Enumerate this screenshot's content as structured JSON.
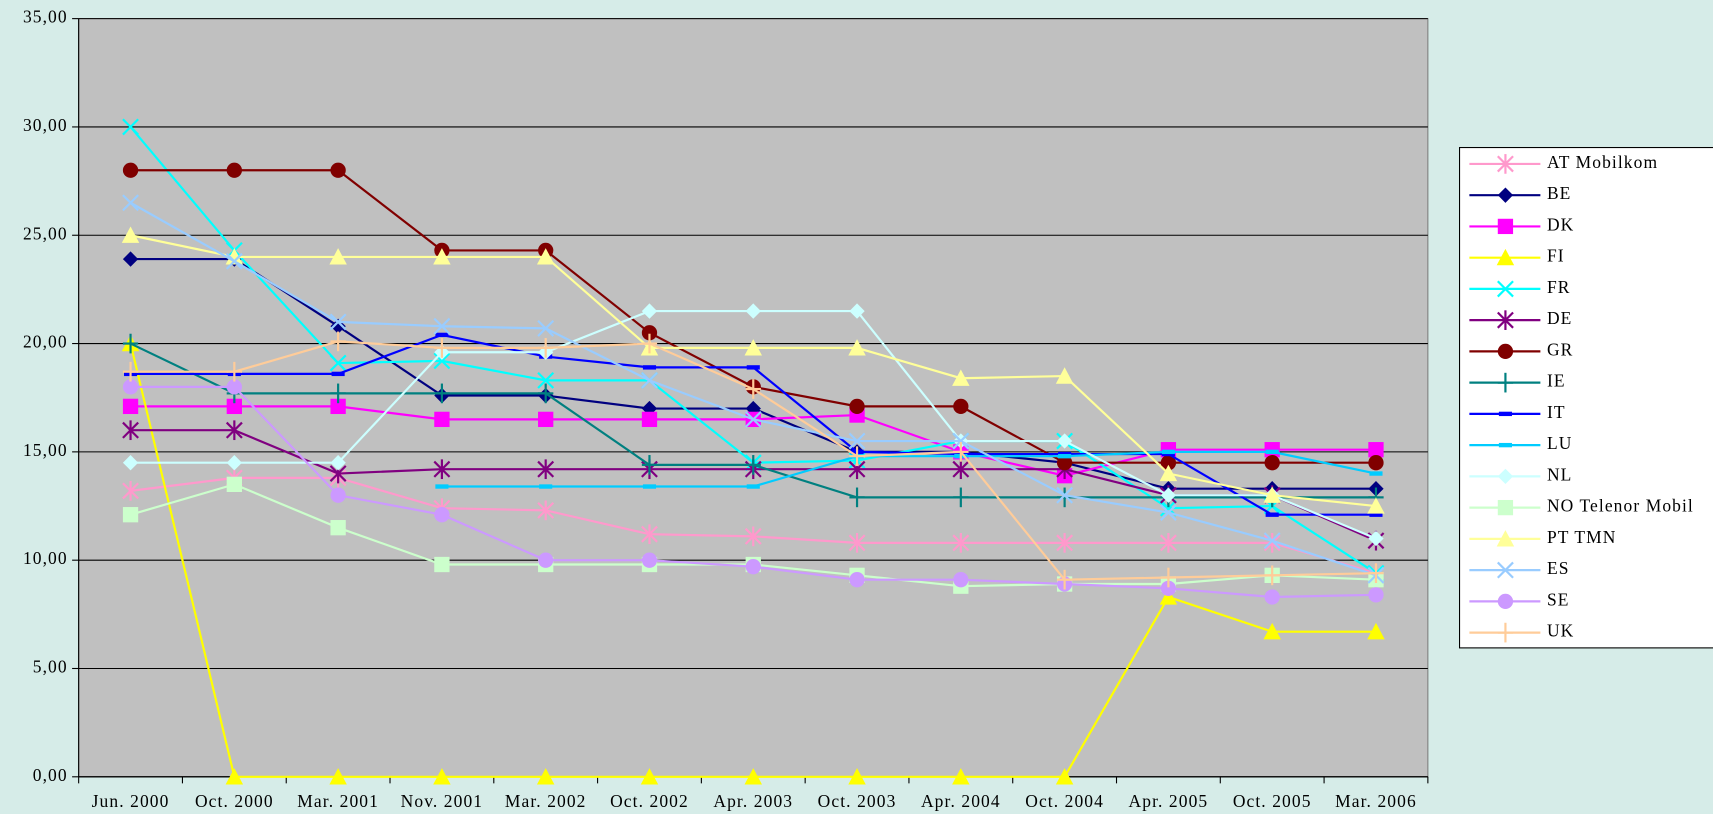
{
  "chart_data": {
    "type": "line",
    "categories": [
      "Jun. 2000",
      "Oct. 2000",
      "Mar. 2001",
      "Nov. 2001",
      "Mar. 2002",
      "Oct. 2002",
      "Apr. 2003",
      "Oct. 2003",
      "Apr. 2004",
      "Oct. 2004",
      "Apr. 2005",
      "Oct. 2005",
      "Mar. 2006"
    ],
    "ylim": [
      0,
      35
    ],
    "yticks": [
      {
        "value": 0,
        "label": "0,00"
      },
      {
        "value": 5,
        "label": "5,00"
      },
      {
        "value": 10,
        "label": "10,00"
      },
      {
        "value": 15,
        "label": "15,00"
      },
      {
        "value": 20,
        "label": "20,00"
      },
      {
        "value": 25,
        "label": "25,00"
      },
      {
        "value": 30,
        "label": "30,00"
      },
      {
        "value": 35,
        "label": "35,00"
      }
    ],
    "grid": true,
    "legend": "right",
    "series": [
      {
        "name": "AT Mobilkom",
        "color": "#ff99cc",
        "marker": "asterisk",
        "values": [
          13.2,
          13.8,
          13.8,
          12.4,
          12.3,
          11.2,
          11.1,
          10.8,
          10.8,
          10.8,
          10.8,
          10.8,
          9.4
        ]
      },
      {
        "name": "BE",
        "color": "#000080",
        "marker": "diamond",
        "values": [
          23.9,
          23.9,
          20.8,
          17.6,
          17.6,
          17.0,
          17.0,
          15.0,
          15.0,
          14.5,
          13.3,
          13.3,
          13.3
        ]
      },
      {
        "name": "DK",
        "color": "#ff00ff",
        "marker": "square",
        "values": [
          17.1,
          17.1,
          17.1,
          16.5,
          16.5,
          16.5,
          16.5,
          16.7,
          15.0,
          13.9,
          15.1,
          15.1,
          15.1
        ]
      },
      {
        "name": "FI",
        "color": "#ffff00",
        "marker": "triangle",
        "values": [
          20.0,
          0,
          0,
          0,
          0,
          0,
          0,
          0,
          0,
          0,
          8.3,
          6.7,
          6.7
        ]
      },
      {
        "name": "FR",
        "color": "#00ffff",
        "marker": "x",
        "values": [
          30.0,
          24.3,
          19.1,
          19.2,
          18.3,
          18.3,
          14.5,
          14.6,
          15.5,
          15.5,
          12.4,
          12.5,
          9.4
        ]
      },
      {
        "name": "DE",
        "color": "#800080",
        "marker": "asterisk",
        "values": [
          16.0,
          16.0,
          14.0,
          14.2,
          14.2,
          14.2,
          14.2,
          14.2,
          14.2,
          14.2,
          13.0,
          13.0,
          10.9
        ]
      },
      {
        "name": "GR",
        "color": "#800000",
        "marker": "circle",
        "values": [
          28.0,
          28.0,
          28.0,
          24.3,
          24.3,
          20.5,
          18.0,
          17.1,
          17.1,
          14.5,
          14.5,
          14.5,
          14.5
        ]
      },
      {
        "name": "IE",
        "color": "#008080",
        "marker": "plus",
        "values": [
          20.0,
          17.7,
          17.7,
          17.7,
          17.7,
          14.4,
          14.4,
          12.9,
          12.9,
          12.9,
          12.9,
          12.9,
          12.9
        ]
      },
      {
        "name": "IT",
        "color": "#0000ff",
        "marker": "dash",
        "values": [
          18.6,
          18.6,
          18.6,
          20.4,
          19.4,
          18.9,
          18.9,
          15.0,
          14.9,
          14.9,
          14.9,
          12.1,
          12.1
        ]
      },
      {
        "name": "LU",
        "color": "#00ccff",
        "marker": "dash",
        "values": [
          null,
          null,
          null,
          13.4,
          13.4,
          13.4,
          13.4,
          14.8,
          14.8,
          14.8,
          15.0,
          15.0,
          14.0
        ]
      },
      {
        "name": "NL",
        "color": "#ccffff",
        "marker": "diamond",
        "values": [
          14.5,
          14.5,
          14.5,
          19.6,
          19.6,
          21.5,
          21.5,
          21.5,
          15.5,
          15.5,
          13.0,
          13.0,
          11.0
        ]
      },
      {
        "name": "NO Telenor Mobil",
        "color": "#ccffcc",
        "marker": "square",
        "values": [
          12.1,
          13.5,
          11.5,
          9.8,
          9.8,
          9.8,
          9.8,
          9.3,
          8.8,
          8.9,
          8.9,
          9.3,
          9.1
        ]
      },
      {
        "name": "PT TMN",
        "color": "#ffff99",
        "marker": "triangle",
        "values": [
          25.0,
          24.0,
          24.0,
          24.0,
          24.0,
          19.8,
          19.8,
          19.8,
          18.4,
          18.5,
          14.0,
          13.0,
          12.5
        ]
      },
      {
        "name": "ES",
        "color": "#99ccff",
        "marker": "x",
        "values": [
          26.5,
          23.8,
          21.0,
          20.8,
          20.7,
          18.3,
          16.5,
          15.5,
          15.5,
          13.0,
          12.2,
          10.9,
          9.3
        ]
      },
      {
        "name": "SE",
        "color": "#cc99ff",
        "marker": "circle",
        "values": [
          18.0,
          18.0,
          13.0,
          12.1,
          10.0,
          10.0,
          9.7,
          9.1,
          9.1,
          8.9,
          8.7,
          8.3,
          8.4
        ]
      },
      {
        "name": "UK",
        "color": "#ffcc99",
        "marker": "plus",
        "values": [
          18.7,
          18.7,
          20.1,
          19.8,
          19.8,
          20.0,
          17.9,
          14.8,
          15.0,
          9.1,
          9.2,
          9.3,
          9.4
        ]
      }
    ]
  }
}
